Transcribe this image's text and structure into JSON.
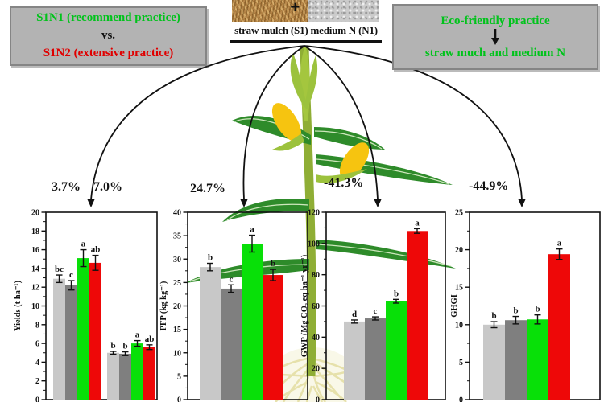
{
  "header": {
    "left_box": {
      "line1": "S1N1 (recommend practice)",
      "line2": "vs.",
      "line3": "S1N2 (extensive practice)"
    },
    "center": {
      "plus": "+",
      "left_photo_icon": "straw-texture",
      "right_photo_icon": "fertilizer-granules-texture",
      "caption": "straw mulch (S1) medium N (N1)"
    },
    "right_box": {
      "line1": "Eco-friendly practice",
      "down_arrow_icon": "↓",
      "line2": "straw much and medium N"
    }
  },
  "percent_changes": {
    "yields_main": "3.7%",
    "yields_secondary": "7.0%",
    "pfp": "24.7%",
    "gwp": "-41.3%",
    "ghgi": "-44.9%"
  },
  "colors": {
    "green_text": "#00c31b",
    "red_text": "#e00000",
    "box_bg": "#b3b3b3",
    "bar_light_gray": "#c8c8c8",
    "bar_dark_gray": "#7f7f7f",
    "bar_green": "#08e008",
    "bar_red": "#ee0808"
  },
  "bar_palette": [
    "#c8c8c8",
    "#7f7f7f",
    "#08e008",
    "#ee0808"
  ],
  "chart_data": [
    {
      "id": "yields",
      "type": "bar",
      "ylabel": "Yields (t ha⁻¹)",
      "ylim": [
        0,
        20
      ],
      "ytick_step": 2,
      "ytick_minor": 1,
      "grid": false,
      "legend": "none",
      "groups": [
        {
          "values": [
            12.9,
            12.2,
            15.1,
            14.6
          ],
          "errors": [
            0.4,
            0.5,
            0.9,
            0.8
          ],
          "sig_letters": [
            "bc",
            "c",
            "a",
            "ab"
          ]
        },
        {
          "values": [
            5.0,
            4.9,
            6.0,
            5.6
          ],
          "errors": [
            0.15,
            0.2,
            0.3,
            0.25
          ],
          "sig_letters": [
            "b",
            "b",
            "a",
            "ab"
          ]
        }
      ]
    },
    {
      "id": "pfp",
      "type": "bar",
      "ylabel": "PFP (kg kg⁻¹)",
      "ylim": [
        0,
        40
      ],
      "ytick_step": 5,
      "ytick_minor": 2.5,
      "grid": false,
      "legend": "none",
      "groups": [
        {
          "values": [
            28.3,
            23.7,
            33.3,
            26.6
          ],
          "errors": [
            0.8,
            0.8,
            1.8,
            1.2
          ],
          "sig_letters": [
            "b",
            "c",
            "a",
            "b"
          ]
        }
      ]
    },
    {
      "id": "gwp",
      "type": "bar",
      "ylabel": "GWP (Mg CO₂ eq ha⁻¹ yr⁻¹)",
      "ylim": [
        0,
        120
      ],
      "ytick_step": 20,
      "ytick_minor": 10,
      "grid": false,
      "legend": "none",
      "groups": [
        {
          "values": [
            50,
            52,
            63,
            108
          ],
          "errors": [
            1.0,
            1.0,
            1.2,
            1.5
          ],
          "sig_letters": [
            "d",
            "c",
            "b",
            "a"
          ]
        }
      ]
    },
    {
      "id": "ghgi",
      "type": "bar",
      "ylabel": "GHGI",
      "ylim": [
        0,
        25
      ],
      "ytick_step": 5,
      "ytick_minor": 2.5,
      "grid": false,
      "legend": "none",
      "groups": [
        {
          "values": [
            10.0,
            10.6,
            10.7,
            19.4
          ],
          "errors": [
            0.4,
            0.5,
            0.6,
            0.7
          ],
          "sig_letters": [
            "b",
            "b",
            "b",
            "a"
          ]
        }
      ]
    }
  ]
}
